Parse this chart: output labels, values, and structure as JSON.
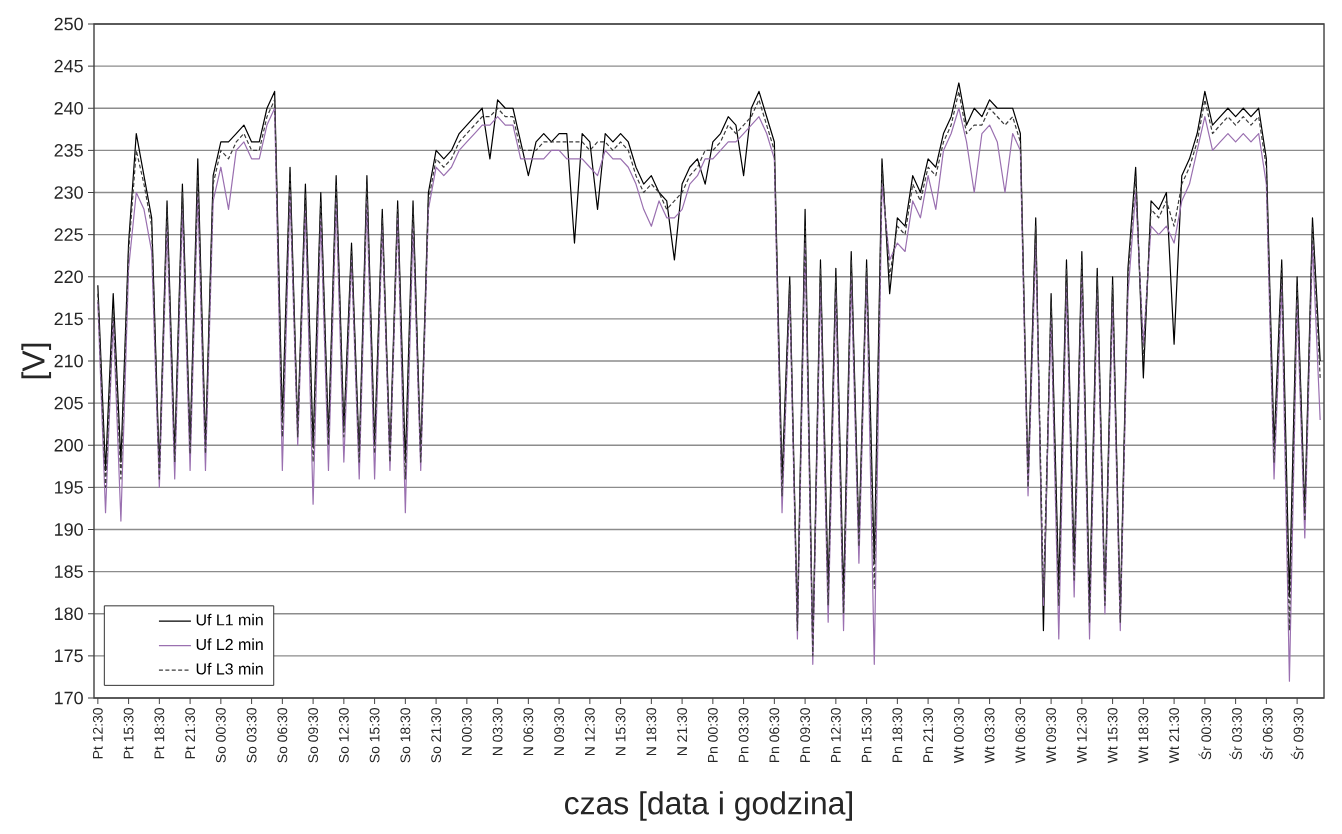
{
  "chart_data": {
    "type": "line",
    "xlabel": "czas [data i godzina]",
    "ylabel": "[V]",
    "categories": [
      "Pt 12:30",
      null,
      null,
      null,
      "Pt 15:30",
      null,
      null,
      null,
      "Pt 18:30",
      null,
      null,
      null,
      "Pt 21:30",
      null,
      null,
      null,
      "So 00:30",
      null,
      null,
      null,
      "So 03:30",
      null,
      null,
      null,
      "So 06:30",
      null,
      null,
      null,
      "So 09:30",
      null,
      null,
      null,
      "So 12:30",
      null,
      null,
      null,
      "So 15:30",
      null,
      null,
      null,
      "So 18:30",
      null,
      null,
      null,
      "So 21:30",
      null,
      null,
      null,
      "N 00:30",
      null,
      null,
      null,
      "N 03:30",
      null,
      null,
      null,
      "N 06:30",
      null,
      null,
      null,
      "N 09:30",
      null,
      null,
      null,
      "N 12:30",
      null,
      null,
      null,
      "N 15:30",
      null,
      null,
      null,
      "N 18:30",
      null,
      null,
      null,
      "N 21:30",
      null,
      null,
      null,
      "Pn 00:30",
      null,
      null,
      null,
      "Pn 03:30",
      null,
      null,
      null,
      "Pn 06:30",
      null,
      null,
      null,
      "Pn 09:30",
      null,
      null,
      null,
      "Pn 12:30",
      null,
      null,
      null,
      "Pn 15:30",
      null,
      null,
      null,
      "Pn 18:30",
      null,
      null,
      null,
      "Pn 21:30",
      null,
      null,
      null,
      "Wt 00:30",
      null,
      null,
      null,
      "Wt 03:30",
      null,
      null,
      null,
      "Wt 06:30",
      null,
      null,
      null,
      "Wt 09:30",
      null,
      null,
      null,
      "Wt 12:30",
      null,
      null,
      null,
      "Wt 15:30",
      null,
      null,
      null,
      "Wt 18:30",
      null,
      null,
      null,
      "Wt 21:30",
      null,
      null,
      null,
      "Śr 00:30",
      null,
      null,
      null,
      "Śr 03:30",
      null,
      null,
      null,
      "Śr 06:30",
      null,
      null,
      null,
      "Śr 09:30",
      null,
      null,
      null
    ],
    "series": [
      {
        "name": "Uf L1 min",
        "color": "#000000",
        "line_style": "solid",
        "values": [
          219,
          197,
          218,
          198,
          224,
          237,
          232,
          227,
          197,
          229,
          199,
          231,
          200,
          234,
          200,
          232,
          236,
          236,
          237,
          238,
          236,
          236,
          240,
          242,
          203,
          233,
          202,
          231,
          200,
          230,
          201,
          232,
          202,
          224,
          199,
          232,
          200,
          228,
          199,
          229,
          198,
          229,
          199,
          230,
          235,
          234,
          235,
          237,
          238,
          239,
          240,
          234,
          241,
          240,
          240,
          236,
          232,
          236,
          237,
          236,
          237,
          237,
          224,
          237,
          236,
          228,
          237,
          236,
          237,
          236,
          233,
          231,
          232,
          230,
          229,
          222,
          231,
          233,
          234,
          231,
          236,
          237,
          239,
          238,
          232,
          240,
          242,
          239,
          236,
          196,
          220,
          179,
          228,
          176,
          222,
          183,
          221,
          182,
          223,
          189,
          222,
          186,
          234,
          218,
          227,
          226,
          232,
          230,
          234,
          233,
          237,
          239,
          243,
          238,
          240,
          239,
          241,
          240,
          240,
          240,
          237,
          196,
          227,
          178,
          218,
          183,
          222,
          186,
          223,
          181,
          221,
          182,
          220,
          180,
          221,
          233,
          208,
          229,
          228,
          230,
          212,
          232,
          234,
          237,
          242,
          238,
          239,
          240,
          239,
          240,
          239,
          240,
          234,
          200,
          222,
          182,
          220,
          192,
          227,
          210
        ]
      },
      {
        "name": "Uf L2 min",
        "color": "#9a70b0",
        "line_style": "solid",
        "values": [
          217,
          192,
          215,
          191,
          221,
          230,
          228,
          223,
          195,
          226,
          196,
          228,
          197,
          230,
          197,
          229,
          233,
          228,
          235,
          236,
          234,
          234,
          238,
          240,
          197,
          230,
          200,
          228,
          193,
          227,
          197,
          229,
          198,
          222,
          196,
          229,
          196,
          226,
          197,
          227,
          192,
          226,
          197,
          228,
          233,
          232,
          233,
          235,
          236,
          237,
          238,
          238,
          239,
          238,
          238,
          234,
          234,
          234,
          234,
          235,
          235,
          234,
          234,
          234,
          233,
          232,
          235,
          234,
          234,
          233,
          231,
          228,
          226,
          229,
          227,
          227,
          228,
          231,
          232,
          234,
          234,
          235,
          236,
          236,
          237,
          238,
          239,
          237,
          234,
          192,
          218,
          177,
          224,
          174,
          219,
          179,
          218,
          178,
          220,
          186,
          220,
          174,
          231,
          222,
          224,
          223,
          229,
          227,
          232,
          228,
          235,
          237,
          240,
          236,
          230,
          237,
          238,
          236,
          230,
          237,
          235,
          194,
          224,
          181,
          215,
          177,
          219,
          182,
          220,
          177,
          218,
          180,
          217,
          178,
          218,
          230,
          212,
          226,
          225,
          226,
          224,
          229,
          231,
          235,
          239,
          235,
          236,
          237,
          236,
          237,
          236,
          237,
          231,
          196,
          219,
          172,
          217,
          189,
          224,
          203
        ]
      },
      {
        "name": "Uf L3 min",
        "color": "#3c3c3c",
        "line_style": "dashed",
        "values": [
          218,
          195,
          216,
          196,
          223,
          235,
          231,
          226,
          196,
          228,
          198,
          230,
          199,
          232,
          199,
          231,
          235,
          234,
          236,
          237,
          235,
          235,
          239,
          241,
          201,
          232,
          201,
          230,
          198,
          229,
          200,
          231,
          201,
          223,
          198,
          231,
          199,
          227,
          198,
          228,
          196,
          228,
          198,
          229,
          234,
          233,
          234,
          236,
          237,
          238,
          239,
          239,
          240,
          239,
          239,
          235,
          235,
          235,
          236,
          236,
          236,
          236,
          236,
          236,
          235,
          236,
          236,
          235,
          236,
          235,
          232,
          230,
          231,
          230,
          228,
          229,
          230,
          232,
          233,
          235,
          235,
          236,
          238,
          237,
          238,
          239,
          241,
          238,
          235,
          194,
          219,
          178,
          226,
          175,
          221,
          181,
          220,
          180,
          222,
          188,
          221,
          183,
          233,
          220,
          226,
          225,
          231,
          229,
          233,
          232,
          236,
          238,
          242,
          237,
          238,
          238,
          240,
          239,
          238,
          239,
          236,
          195,
          226,
          182,
          217,
          181,
          221,
          184,
          222,
          179,
          220,
          181,
          219,
          179,
          220,
          232,
          210,
          228,
          227,
          229,
          226,
          231,
          233,
          236,
          241,
          237,
          238,
          239,
          238,
          239,
          238,
          239,
          233,
          198,
          221,
          178,
          219,
          191,
          226,
          208
        ]
      }
    ],
    "ylim": [
      170,
      250
    ],
    "yticks": [
      170,
      175,
      180,
      185,
      190,
      195,
      200,
      205,
      210,
      215,
      220,
      225,
      230,
      235,
      240,
      245,
      250
    ],
    "grid": "y",
    "legend": "bottom left"
  }
}
